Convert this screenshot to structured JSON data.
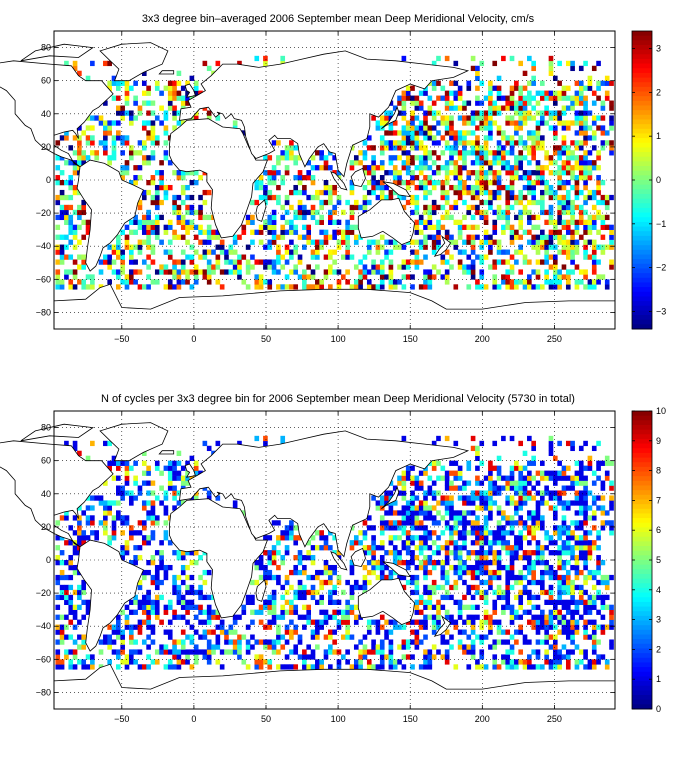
{
  "chart_data": [
    {
      "type": "heatmap",
      "title": "3x3 degree bin–averaged 2006 September mean Deep Meridional Velocity, cm/s",
      "xlabel": "",
      "ylabel": "",
      "xlim": [
        -97,
        292
      ],
      "ylim": [
        -90,
        90
      ],
      "xticks": [
        -50,
        0,
        50,
        100,
        150,
        200,
        250
      ],
      "yticks": [
        80,
        60,
        40,
        20,
        0,
        -20,
        -40,
        -60,
        -80
      ],
      "grid": true,
      "bin_size_deg": 3,
      "colorbar": {
        "min": -3.4,
        "max": 3.4,
        "ticks": [
          3,
          2,
          1,
          0,
          -1,
          -2,
          -3
        ],
        "colormap": "jet",
        "placement": "right"
      },
      "bins": []
    },
    {
      "type": "heatmap",
      "title": "N of cycles per 3x3 degree bin for 2006 September mean Deep Meridional Velocity (5730 in total)",
      "xlabel": "",
      "ylabel": "",
      "xlim": [
        -97,
        292
      ],
      "ylim": [
        -90,
        90
      ],
      "xticks": [
        -50,
        0,
        50,
        100,
        150,
        200,
        250
      ],
      "yticks": [
        80,
        60,
        40,
        20,
        0,
        -20,
        -40,
        -60,
        -80
      ],
      "grid": true,
      "bin_size_deg": 3,
      "total_cycles": 5730,
      "colorbar": {
        "min": 0,
        "max": 10,
        "ticks": [
          10,
          9,
          8,
          7,
          6,
          5,
          4,
          3,
          2,
          1,
          0
        ],
        "colormap": "jet",
        "placement": "right"
      },
      "bins": []
    }
  ]
}
